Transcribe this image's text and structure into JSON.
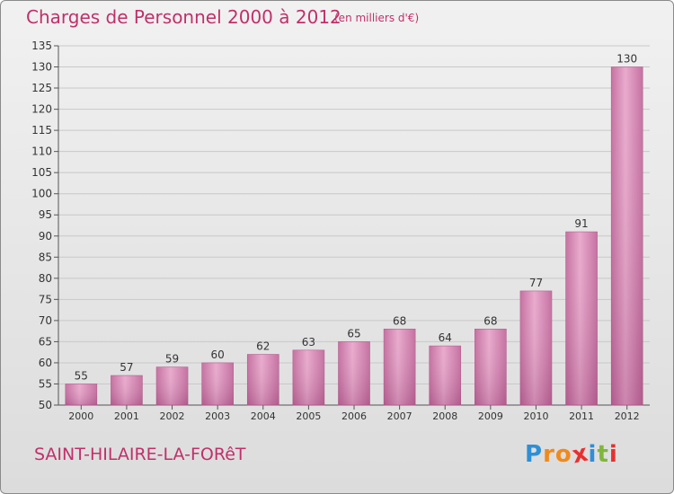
{
  "header": {
    "title": "Charges de Personnel 2000 à 2012",
    "subtitle": "(en milliers d'€)"
  },
  "footer": {
    "commune": "SAINT-HILAIRE-LA-FORêT",
    "logo": {
      "text": "Proxiti",
      "letters": [
        "P",
        "r",
        "o",
        "x",
        "i",
        "t",
        "i"
      ],
      "letter_colors": [
        "#2e8fd6",
        "#f08a1c",
        "#f08a1c",
        "#e8302e",
        "#2e8fd6",
        "#80b63b",
        "#e8302e"
      ]
    }
  },
  "chart_data": {
    "type": "bar",
    "categories": [
      "2000",
      "2001",
      "2002",
      "2003",
      "2004",
      "2005",
      "2006",
      "2007",
      "2008",
      "2009",
      "2010",
      "2011",
      "2012"
    ],
    "values": [
      55,
      57,
      59,
      60,
      62,
      63,
      65,
      68,
      64,
      68,
      77,
      91,
      130
    ],
    "data_labels": [
      "55",
      "57",
      "59",
      "60",
      "62",
      "63",
      "65",
      "68",
      "64",
      "68",
      "77",
      "91",
      "130"
    ],
    "yticks": [
      50,
      55,
      60,
      65,
      70,
      75,
      80,
      85,
      90,
      95,
      100,
      105,
      110,
      115,
      120,
      125,
      130,
      135
    ],
    "ylim": [
      50,
      135
    ],
    "grid": true,
    "colors": {
      "bar": "#d27aab",
      "bar_light": "#e8a6cb",
      "grid": "#c8c8c8",
      "axis": "#555555",
      "text": "#333333"
    }
  }
}
